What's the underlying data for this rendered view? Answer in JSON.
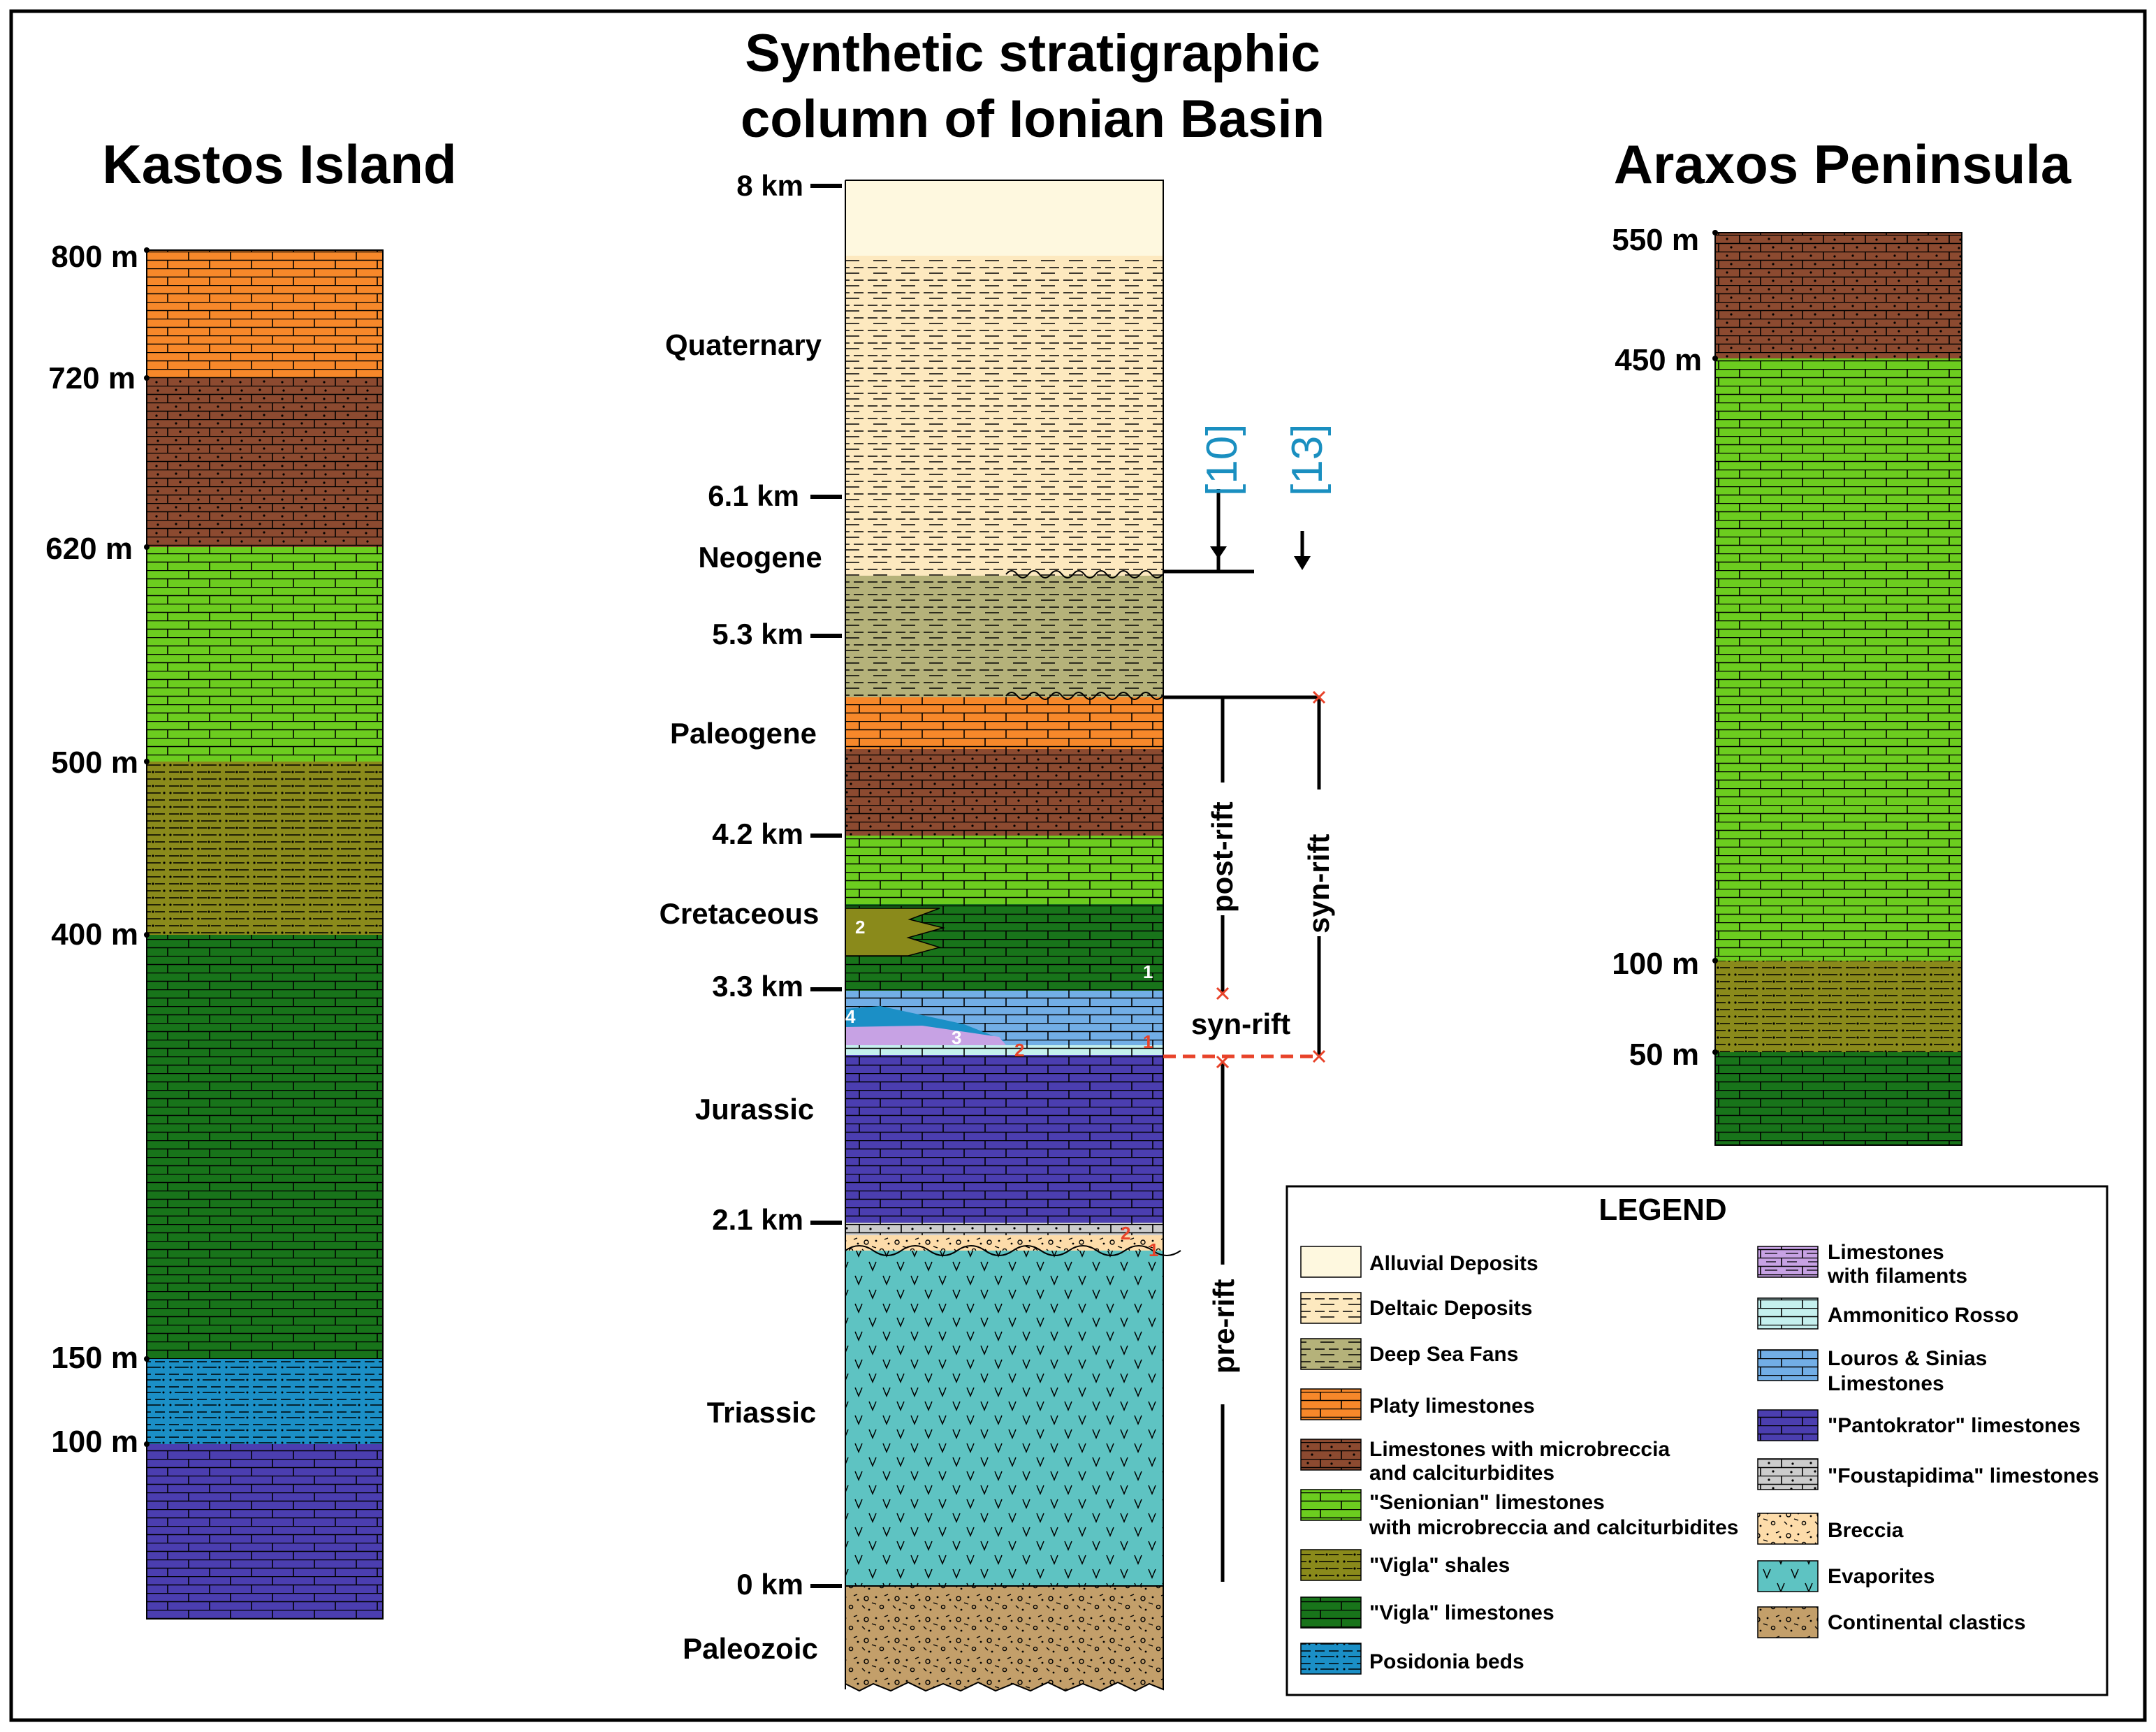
{
  "titles": {
    "center_line1": "Synthetic stratigraphic",
    "center_line2": "column of Ionian Basin",
    "left": "Kastos Island",
    "right": "Araxos Peninsula"
  },
  "kastos": {
    "depth_labels": [
      "800 m",
      "720 m",
      "620 m",
      "500 m",
      "400 m",
      "150 m",
      "100 m"
    ],
    "units": [
      {
        "key": "platy",
        "depth_top_m": 800,
        "depth_bottom_m": 720
      },
      {
        "key": "microbreccia",
        "depth_top_m": 720,
        "depth_bottom_m": 620
      },
      {
        "key": "senonian",
        "depth_top_m": 620,
        "depth_bottom_m": 500
      },
      {
        "key": "vigla_shales",
        "depth_top_m": 500,
        "depth_bottom_m": 400
      },
      {
        "key": "vigla_lst",
        "depth_top_m": 400,
        "depth_bottom_m": 150
      },
      {
        "key": "posidonia",
        "depth_top_m": 150,
        "depth_bottom_m": 100
      },
      {
        "key": "pantokrator",
        "depth_top_m": 100,
        "depth_bottom_m": 0
      }
    ]
  },
  "araxos": {
    "depth_labels": [
      "550 m",
      "450 m",
      "100 m",
      "50 m"
    ],
    "units": [
      {
        "key": "microbreccia",
        "depth_top_m": 550,
        "depth_bottom_m": 450
      },
      {
        "key": "senonian",
        "depth_top_m": 450,
        "depth_bottom_m": 100
      },
      {
        "key": "vigla_shales",
        "depth_top_m": 100,
        "depth_bottom_m": 50
      },
      {
        "key": "vigla_lst",
        "depth_top_m": 50,
        "depth_bottom_m": 0
      }
    ]
  },
  "ionian": {
    "depth_labels": [
      "8 km",
      "6.1 km",
      "5.3 km",
      "4.2 km",
      "3.3 km",
      "2.1 km",
      "0 km"
    ],
    "periods": [
      "Quaternary",
      "Neogene",
      "Paleogene",
      "Cretaceous",
      "Jurassic",
      "Triassic",
      "Paleozoic"
    ],
    "units": [
      {
        "key": "alluvial"
      },
      {
        "key": "deltaic"
      },
      {
        "key": "deepsea"
      },
      {
        "key": "platy"
      },
      {
        "key": "microbreccia"
      },
      {
        "key": "senonian"
      },
      {
        "key": "vigla_lst"
      },
      {
        "key": "louros"
      },
      {
        "key": "ammonitico"
      },
      {
        "key": "pantokrator"
      },
      {
        "key": "foustapidima"
      },
      {
        "key": "breccia"
      },
      {
        "key": "evaporites"
      },
      {
        "key": "clastics"
      }
    ],
    "marker_numbers": {
      "n1": "1",
      "n2": "2",
      "n3": "3",
      "n4": "4"
    }
  },
  "references": {
    "ref10": "[10]",
    "ref13": "[13]"
  },
  "phases": {
    "post_rift": "post-rift",
    "syn_rift_vertical": "syn-rift",
    "syn_rift_horizontal": "syn-rift",
    "pre_rift": "pre-rift"
  },
  "legend": {
    "title": "LEGEND",
    "items": [
      {
        "key": "alluvial",
        "label": "Alluvial Deposits"
      },
      {
        "key": "deltaic",
        "label": "Deltaic Deposits"
      },
      {
        "key": "deepsea",
        "label": "Deep Sea Fans"
      },
      {
        "key": "platy",
        "label": "Platy limestones"
      },
      {
        "key": "microbreccia",
        "label": "Limestones with microbreccia",
        "label2": "and calciturbidites"
      },
      {
        "key": "senonian",
        "label": "\"Senionian\" limestones",
        "label2": "with microbreccia and calciturbidites"
      },
      {
        "key": "vigla_shales",
        "label": "\"Vigla\" shales"
      },
      {
        "key": "vigla_lst",
        "label": "\"Vigla\" limestones"
      },
      {
        "key": "posidonia",
        "label": "Posidonia beds"
      },
      {
        "key": "filaments",
        "label": "Limestones",
        "label2": "with filaments"
      },
      {
        "key": "ammonitico",
        "label": "Ammonitico Rosso"
      },
      {
        "key": "louros",
        "label": "Louros & Sinias",
        "label2": "Limestones"
      },
      {
        "key": "pantokrator",
        "label": "\"Pantokrator\" limestones"
      },
      {
        "key": "foustapidima",
        "label": "\"Foustapidima\" limestones"
      },
      {
        "key": "breccia",
        "label": "Breccia"
      },
      {
        "key": "evaporites",
        "label": "Evaporites"
      },
      {
        "key": "clastics",
        "label": "Continental clastics"
      }
    ]
  },
  "colors": {
    "alluvial": "#fef8df",
    "deltaic": "#fde9bf",
    "deepsea": "#b5b27a",
    "platy": "#f7882a",
    "microbreccia": "#8c4a30",
    "senonian": "#6ccd1f",
    "vigla_shales": "#8a8a1b",
    "vigla_lst": "#18741a",
    "posidonia": "#1b8fc6",
    "filaments": "#c7a2e4",
    "ammonitico": "#c5f0ee",
    "louros": "#72aee6",
    "pantokrator": "#4b3eb0",
    "foustapidima": "#cccccc",
    "breccia": "#fddcaa",
    "evaporites": "#5ec3c2",
    "clastics": "#c39f6a",
    "accent_blue": "#1a8fc0",
    "unconformity_red": "#e8432a"
  }
}
